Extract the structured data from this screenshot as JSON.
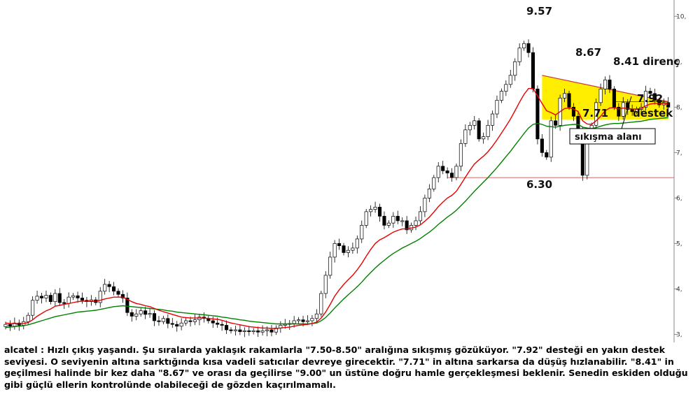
{
  "chart_data": {
    "type": "candlestick",
    "ylim": [
      2.7,
      10.05
    ],
    "y_ticks": [
      "3,",
      "4,",
      "5,",
      "6,",
      "7,",
      "8,",
      "9,",
      "10,"
    ],
    "y_tick_values": [
      3,
      4,
      5,
      6,
      7,
      8,
      9,
      10
    ],
    "closes": [
      3.22,
      3.18,
      3.25,
      3.2,
      3.28,
      3.42,
      3.75,
      3.84,
      3.8,
      3.86,
      3.72,
      3.9,
      3.7,
      3.68,
      3.82,
      3.85,
      3.8,
      3.75,
      3.72,
      3.76,
      3.7,
      3.95,
      4.1,
      4.05,
      3.95,
      3.88,
      3.8,
      3.48,
      3.4,
      3.45,
      3.52,
      3.44,
      3.46,
      3.3,
      3.28,
      3.35,
      3.24,
      3.22,
      3.18,
      3.25,
      3.3,
      3.28,
      3.32,
      3.38,
      3.35,
      3.3,
      3.25,
      3.22,
      3.2,
      3.1,
      3.08,
      3.1,
      3.06,
      3.08,
      3.06,
      3.08,
      3.05,
      3.08,
      3.1,
      3.05,
      3.14,
      3.2,
      3.22,
      3.24,
      3.3,
      3.32,
      3.28,
      3.3,
      3.35,
      3.45,
      3.9,
      4.3,
      4.7,
      5.0,
      4.95,
      4.8,
      4.85,
      4.9,
      5.1,
      5.4,
      5.7,
      5.75,
      5.8,
      5.6,
      5.4,
      5.45,
      5.6,
      5.5,
      5.5,
      5.3,
      5.4,
      5.5,
      5.7,
      6.0,
      6.2,
      6.45,
      6.7,
      6.6,
      6.55,
      6.45,
      6.7,
      7.2,
      7.5,
      7.6,
      7.7,
      7.3,
      7.35,
      7.6,
      7.85,
      8.15,
      8.35,
      8.5,
      8.7,
      9.0,
      9.3,
      9.4,
      9.2,
      8.4,
      7.3,
      7.0,
      6.9,
      7.7,
      7.6,
      8.2,
      8.3,
      8.0,
      7.8,
      7.5,
      6.5,
      7.3,
      7.6,
      8.1,
      8.4,
      8.6,
      8.4,
      8.0,
      7.8,
      8.1,
      7.95,
      7.9,
      7.95,
      8.0,
      8.35,
      8.3,
      8.15,
      8.05,
      8.1,
      8.0
    ],
    "ma_short": [
      3.25,
      3.24,
      3.24,
      3.23,
      3.24,
      3.26,
      3.32,
      3.4,
      3.46,
      3.52,
      3.56,
      3.62,
      3.64,
      3.66,
      3.68,
      3.7,
      3.72,
      3.73,
      3.73,
      3.73,
      3.73,
      3.75,
      3.78,
      3.8,
      3.82,
      3.82,
      3.82,
      3.77,
      3.72,
      3.68,
      3.66,
      3.63,
      3.61,
      3.57,
      3.53,
      3.5,
      3.47,
      3.44,
      3.41,
      3.38,
      3.37,
      3.36,
      3.36,
      3.36,
      3.36,
      3.35,
      3.34,
      3.33,
      3.31,
      3.28,
      3.25,
      3.23,
      3.21,
      3.19,
      3.17,
      3.16,
      3.15,
      3.14,
      3.14,
      3.13,
      3.13,
      3.14,
      3.15,
      3.16,
      3.18,
      3.2,
      3.21,
      3.22,
      3.24,
      3.27,
      3.36,
      3.49,
      3.66,
      3.84,
      3.98,
      4.1,
      4.2,
      4.3,
      4.42,
      4.56,
      4.72,
      4.87,
      5.0,
      5.08,
      5.13,
      5.19,
      5.25,
      5.29,
      5.32,
      5.32,
      5.34,
      5.36,
      5.41,
      5.49,
      5.58,
      5.69,
      5.81,
      5.91,
      6.0,
      6.06,
      6.15,
      6.3,
      6.46,
      6.61,
      6.75,
      6.84,
      6.92,
      7.02,
      7.14,
      7.28,
      7.43,
      7.58,
      7.74,
      7.92,
      8.11,
      8.28,
      8.41,
      8.41,
      8.25,
      8.08,
      7.92,
      7.88,
      7.83,
      7.9,
      7.97,
      7.98,
      7.96,
      7.9,
      7.7,
      7.63,
      7.62,
      7.7,
      7.8,
      7.92,
      7.98,
      7.99,
      7.96,
      7.98,
      7.97,
      7.96,
      7.96,
      7.97,
      8.03,
      8.07,
      8.08,
      8.08,
      8.08,
      8.07
    ],
    "ma_long": [
      3.15,
      3.16,
      3.17,
      3.18,
      3.19,
      3.21,
      3.24,
      3.27,
      3.3,
      3.33,
      3.36,
      3.39,
      3.41,
      3.43,
      3.45,
      3.47,
      3.49,
      3.5,
      3.51,
      3.52,
      3.53,
      3.55,
      3.57,
      3.59,
      3.61,
      3.62,
      3.63,
      3.62,
      3.61,
      3.6,
      3.59,
      3.58,
      3.57,
      3.56,
      3.55,
      3.54,
      3.52,
      3.51,
      3.49,
      3.48,
      3.47,
      3.46,
      3.45,
      3.44,
      3.43,
      3.42,
      3.41,
      3.4,
      3.38,
      3.37,
      3.35,
      3.34,
      3.32,
      3.31,
      3.29,
      3.28,
      3.27,
      3.26,
      3.25,
      3.24,
      3.23,
      3.23,
      3.23,
      3.23,
      3.23,
      3.23,
      3.23,
      3.23,
      3.24,
      3.25,
      3.3,
      3.37,
      3.47,
      3.58,
      3.68,
      3.78,
      3.87,
      3.96,
      4.05,
      4.15,
      4.26,
      4.36,
      4.46,
      4.55,
      4.63,
      4.71,
      4.78,
      4.84,
      4.9,
      4.95,
      5.0,
      5.05,
      5.11,
      5.18,
      5.25,
      5.33,
      5.42,
      5.5,
      5.58,
      5.65,
      5.73,
      5.83,
      5.93,
      6.04,
      6.15,
      6.25,
      6.35,
      6.45,
      6.56,
      6.67,
      6.79,
      6.91,
      7.03,
      7.16,
      7.29,
      7.42,
      7.54,
      7.62,
      7.64,
      7.62,
      7.58,
      7.57,
      7.56,
      7.58,
      7.6,
      7.61,
      7.62,
      7.62,
      7.56,
      7.54,
      7.53,
      7.55,
      7.58,
      7.61,
      7.63,
      7.64,
      7.64,
      7.65,
      7.66,
      7.67,
      7.68,
      7.69,
      7.71,
      7.73,
      7.74,
      7.75,
      7.76,
      7.77
    ],
    "hline": 6.45,
    "triangle": {
      "p1": [
        119,
        8.7
      ],
      "p2": [
        147,
        8.12
      ],
      "p3": [
        147,
        7.73
      ],
      "p4": [
        119,
        7.73
      ]
    },
    "resistance_line": {
      "from": [
        135,
        8.12
      ],
      "to": [
        147,
        8.12
      ]
    }
  },
  "annotations": {
    "peak": "9.57",
    "left_top": "8.67",
    "resistance": "8.41 direnç",
    "support_val": "7.92",
    "low_left": "7.71",
    "support": "destek",
    "squeeze": "sıkışma alanı",
    "bottom": "6.30"
  },
  "colors": {
    "ma_short": "#e60000",
    "ma_long": "#008000",
    "hline": "#cc3333",
    "triangle": "#ffee00",
    "axis": "#888888"
  },
  "commentary": "alcatel : Hızlı çıkış yaşandı. Şu sıralarda yaklaşık rakamlarla \"7.50-8.50\" aralığına sıkışmış gözüküyor. \"7.92\" desteği en yakın destek seviyesi. O seviyenin altına sarktığında kısa vadeli satıcılar devreye girecektir. \"7.71\" in altına sarkarsa da düşüş hızlanabilir. \"8.41\" in geçilmesi halinde bir kez daha \"8.67\" ve orası da geçilirse \"9.00\" un üstüne doğru hamle gerçekleşmesi beklenir. Senedin eskiden olduğu gibi güçlü ellerin kontrolünde olabileceği de gözden kaçırılmamalı."
}
